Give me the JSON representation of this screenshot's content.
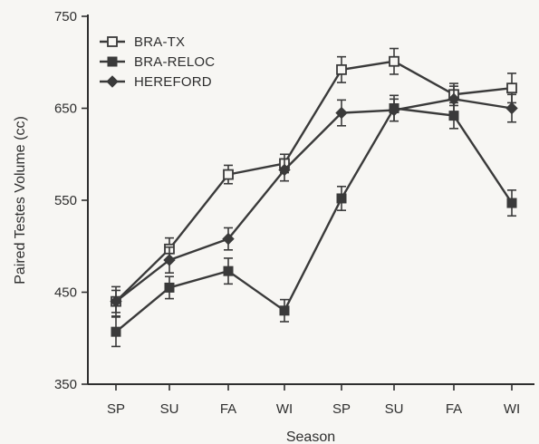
{
  "chart_data": {
    "type": "line",
    "xlabel": "Season",
    "ylabel": "Paired Testes Volume (cc)",
    "categories": [
      "SP",
      "SU",
      "FA",
      "WI",
      "SP",
      "SU",
      "FA",
      "WI"
    ],
    "yticks": [
      "350",
      "450",
      "550",
      "650",
      "750"
    ],
    "ylim": [
      350,
      750
    ],
    "legend_position": "top-left",
    "grid": false,
    "series": [
      {
        "name": "BRA-TX",
        "marker": "open-square",
        "values": [
          440,
          497,
          578,
          590,
          692,
          701,
          665,
          672
        ],
        "errors": [
          12,
          12,
          10,
          10,
          14,
          14,
          12,
          16
        ]
      },
      {
        "name": "BRA-RELOC",
        "marker": "filled-square",
        "values": [
          407,
          455,
          473,
          430,
          552,
          650,
          642,
          547
        ],
        "errors": [
          16,
          12,
          14,
          12,
          13,
          14,
          14,
          14
        ]
      },
      {
        "name": "HEREFORD",
        "marker": "filled-diamond",
        "values": [
          440,
          485,
          508,
          583,
          645,
          648,
          660,
          650
        ],
        "errors": [
          16,
          14,
          12,
          12,
          14,
          12,
          14,
          15
        ]
      }
    ]
  }
}
